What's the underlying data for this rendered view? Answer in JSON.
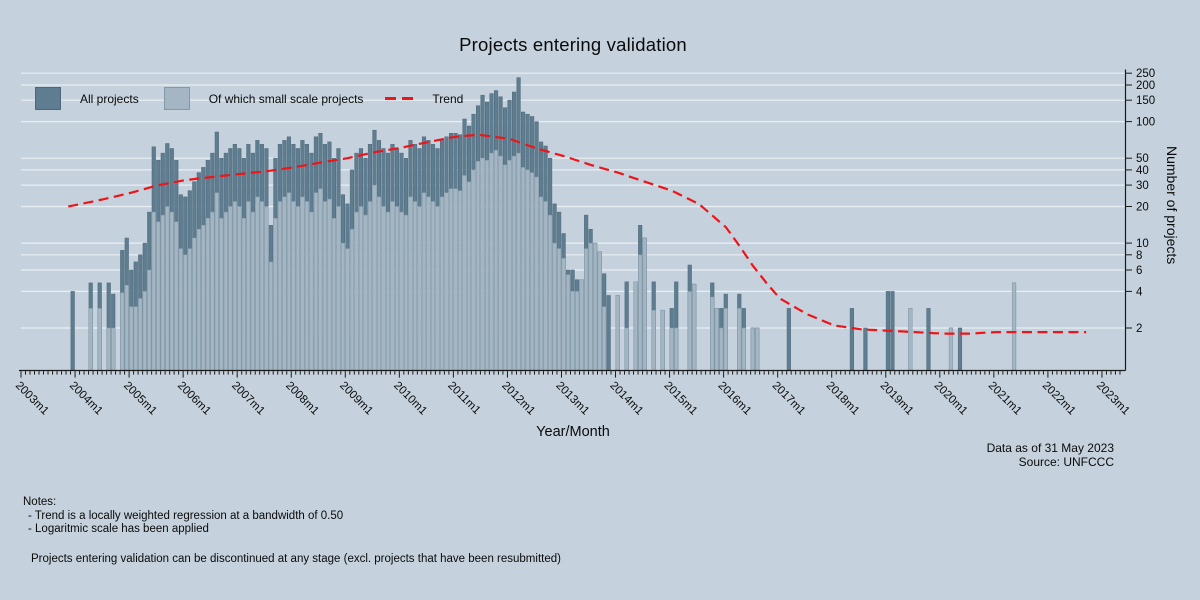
{
  "title": "Projects entering validation",
  "legend": {
    "all_label": "All projects",
    "small_label": "Of which small scale projects",
    "trend_label": "Trend"
  },
  "x_axis": {
    "label": "Year/Month",
    "tick_labels": [
      "2003m1",
      "2004m1",
      "2005m1",
      "2006m1",
      "2007m1",
      "2008m1",
      "2009m1",
      "2010m1",
      "2011m1",
      "2012m1",
      "2013m1",
      "2014m1",
      "2015m1",
      "2016m1",
      "2017m1",
      "2018m1",
      "2019m1",
      "2020m1",
      "2021m1",
      "2022m1",
      "2023m1"
    ]
  },
  "y_axis": {
    "label": "Number of projects",
    "ticks": [
      2,
      4,
      6,
      8,
      10,
      20,
      30,
      40,
      50,
      100,
      150,
      200,
      250
    ],
    "scale": "log"
  },
  "annotations": {
    "data_as_of": "Data as of 31 May 2023",
    "source": "Source: UNFCCC"
  },
  "notes": {
    "heading": "Notes:",
    "lines": [
      "- Trend is a locally weighted regression at a bandwidth of 0.50",
      "- Logaritmic scale has been applied"
    ],
    "footer": "Projects entering validation can be discontinued at any stage (excl. projects that have been resubmitted)"
  },
  "colors": {
    "background": "#c5d2dd",
    "bar_all": "#5f7d90",
    "bar_all_edge": "#4d6878",
    "bar_small": "#a4b6c4",
    "bar_small_edge": "#8499a8",
    "trend": "#ee1417",
    "gridline": "#e9eff4",
    "axis": "#1a1a1a",
    "text": "#0a0a0a"
  },
  "chart_data": {
    "type": "bar",
    "subtype": "overlaid-monthly-bars-with-trend",
    "x_start": "2003m1",
    "x_end": "2023m5",
    "ylim": [
      1,
      260
    ],
    "series_names": [
      "All projects",
      "Of which small scale projects",
      "Trend"
    ],
    "bars": [
      [
        "2003m12",
        4,
        0
      ],
      [
        "2004m4",
        4.7,
        2.9
      ],
      [
        "2004m6",
        4.7,
        2.9
      ],
      [
        "2004m8",
        4.7,
        2
      ],
      [
        "2004m9",
        3.8,
        2
      ],
      [
        "2004m11",
        8.7,
        3.9
      ],
      [
        "2004m12",
        11,
        4.5
      ],
      [
        "2005m1",
        6,
        3
      ],
      [
        "2005m2",
        7,
        3
      ],
      [
        "2005m3",
        8,
        3.5
      ],
      [
        "2005m4",
        10,
        4
      ],
      [
        "2005m5",
        18,
        6
      ],
      [
        "2005m6",
        62,
        18
      ],
      [
        "2005m7",
        48,
        15
      ],
      [
        "2005m8",
        55,
        17
      ],
      [
        "2005m9",
        66,
        20
      ],
      [
        "2005m10",
        60,
        18
      ],
      [
        "2005m11",
        48,
        15
      ],
      [
        "2005m12",
        25,
        9
      ],
      [
        "2006m1",
        24,
        8
      ],
      [
        "2006m2",
        27,
        9
      ],
      [
        "2006m3",
        32,
        11
      ],
      [
        "2006m4",
        38,
        13
      ],
      [
        "2006m5",
        42,
        14
      ],
      [
        "2006m6",
        48,
        16
      ],
      [
        "2006m7",
        55,
        18
      ],
      [
        "2006m8",
        82,
        26
      ],
      [
        "2006m9",
        50,
        16
      ],
      [
        "2006m10",
        55,
        18
      ],
      [
        "2006m11",
        60,
        20
      ],
      [
        "2006m12",
        65,
        22
      ],
      [
        "2007m1",
        60,
        20
      ],
      [
        "2007m2",
        50,
        16
      ],
      [
        "2007m3",
        65,
        22
      ],
      [
        "2007m4",
        55,
        18
      ],
      [
        "2007m5",
        70,
        24
      ],
      [
        "2007m6",
        65,
        22
      ],
      [
        "2007m7",
        60,
        20
      ],
      [
        "2007m8",
        14,
        7
      ],
      [
        "2007m9",
        50,
        16
      ],
      [
        "2007m10",
        65,
        22
      ],
      [
        "2007m11",
        70,
        24
      ],
      [
        "2007m12",
        75,
        26
      ],
      [
        "2008m1",
        65,
        22
      ],
      [
        "2008m2",
        60,
        20
      ],
      [
        "2008m3",
        70,
        24
      ],
      [
        "2008m4",
        65,
        22
      ],
      [
        "2008m5",
        55,
        18
      ],
      [
        "2008m6",
        75,
        26
      ],
      [
        "2008m7",
        80,
        28
      ],
      [
        "2008m8",
        65,
        22
      ],
      [
        "2008m9",
        68,
        23
      ],
      [
        "2008m10",
        50,
        16
      ],
      [
        "2008m11",
        60,
        20
      ],
      [
        "2008m12",
        25,
        10
      ],
      [
        "2009m1",
        21,
        9
      ],
      [
        "2009m2",
        40,
        13
      ],
      [
        "2009m3",
        55,
        18
      ],
      [
        "2009m4",
        60,
        20
      ],
      [
        "2009m5",
        50,
        17
      ],
      [
        "2009m6",
        65,
        22
      ],
      [
        "2009m7",
        85,
        30
      ],
      [
        "2009m8",
        70,
        24
      ],
      [
        "2009m9",
        60,
        20
      ],
      [
        "2009m10",
        55,
        18
      ],
      [
        "2009m11",
        65,
        22
      ],
      [
        "2009m12",
        60,
        20
      ],
      [
        "2010m1",
        55,
        18
      ],
      [
        "2010m2",
        50,
        17
      ],
      [
        "2010m3",
        70,
        24
      ],
      [
        "2010m4",
        65,
        22
      ],
      [
        "2010m5",
        60,
        20
      ],
      [
        "2010m6",
        75,
        26
      ],
      [
        "2010m7",
        70,
        24
      ],
      [
        "2010m8",
        65,
        22
      ],
      [
        "2010m9",
        60,
        20
      ],
      [
        "2010m10",
        70,
        24
      ],
      [
        "2010m11",
        75,
        26
      ],
      [
        "2010m12",
        80,
        28
      ],
      [
        "2011m1",
        80,
        28
      ],
      [
        "2011m2",
        78,
        27
      ],
      [
        "2011m3",
        105,
        36
      ],
      [
        "2011m4",
        92,
        32
      ],
      [
        "2011m5",
        115,
        40
      ],
      [
        "2011m6",
        135,
        47
      ],
      [
        "2011m7",
        165,
        50
      ],
      [
        "2011m8",
        145,
        48
      ],
      [
        "2011m9",
        170,
        55
      ],
      [
        "2011m10",
        180,
        58
      ],
      [
        "2011m11",
        160,
        52
      ],
      [
        "2011m12",
        130,
        44
      ],
      [
        "2012m1",
        150,
        48
      ],
      [
        "2012m2",
        175,
        52
      ],
      [
        "2012m3",
        230,
        55
      ],
      [
        "2012m4",
        120,
        42
      ],
      [
        "2012m5",
        115,
        40
      ],
      [
        "2012m6",
        110,
        38
      ],
      [
        "2012m7",
        100,
        35
      ],
      [
        "2012m8",
        68,
        24
      ],
      [
        "2012m9",
        63,
        22
      ],
      [
        "2012m10",
        50,
        17
      ],
      [
        "2012m11",
        21,
        10
      ],
      [
        "2012m12",
        18,
        9
      ],
      [
        "2013m1",
        12,
        7.5
      ],
      [
        "2013m2",
        6,
        5.5
      ],
      [
        "2013m3",
        6,
        4
      ],
      [
        "2013m4",
        5,
        4
      ],
      [
        "2013m5",
        5,
        5
      ],
      [
        "2013m6",
        17,
        9
      ],
      [
        "2013m7",
        13,
        10
      ],
      [
        "2013m8",
        10,
        10
      ],
      [
        "2013m9",
        8.5,
        8.5
      ],
      [
        "2013m10",
        5.6,
        3
      ],
      [
        "2013m11",
        3.7,
        0
      ],
      [
        "2014m1",
        3.7,
        3.7
      ],
      [
        "2014m3",
        4.8,
        2
      ],
      [
        "2014m5",
        4.8,
        4.8
      ],
      [
        "2014m6",
        14,
        8
      ],
      [
        "2014m7",
        11,
        11
      ],
      [
        "2014m9",
        4.8,
        2.8
      ],
      [
        "2014m11",
        2.8,
        2.8
      ],
      [
        "2015m1",
        2.9,
        2
      ],
      [
        "2015m2",
        4.8,
        2
      ],
      [
        "2015m5",
        6.6,
        4
      ],
      [
        "2015m6",
        4.6,
        4.6
      ],
      [
        "2015m10",
        4.7,
        3.6
      ],
      [
        "2015m11",
        2.9,
        2.9
      ],
      [
        "2015m12",
        2.9,
        2
      ],
      [
        "2016m1",
        3.8,
        2.9
      ],
      [
        "2016m4",
        3.8,
        2.9
      ],
      [
        "2016m5",
        2.9,
        2
      ],
      [
        "2016m7",
        2,
        2
      ],
      [
        "2016m8",
        2,
        2
      ],
      [
        "2017m3",
        2.9,
        0
      ],
      [
        "2018m5",
        2.9,
        0
      ],
      [
        "2018m8",
        2,
        0
      ],
      [
        "2019m1",
        4,
        0
      ],
      [
        "2019m2",
        4,
        0
      ],
      [
        "2019m6",
        2.9,
        2.9
      ],
      [
        "2019m10",
        2.9,
        0
      ],
      [
        "2020m3",
        2,
        2
      ],
      [
        "2020m5",
        2,
        0
      ],
      [
        "2021m5",
        4.7,
        4.7
      ]
    ],
    "trend": [
      [
        "2003m11",
        20
      ],
      [
        "2004m7",
        23
      ],
      [
        "2005m1",
        26
      ],
      [
        "2005m7",
        30
      ],
      [
        "2006m1",
        33
      ],
      [
        "2006m7",
        35
      ],
      [
        "2007m1",
        37
      ],
      [
        "2007m7",
        39
      ],
      [
        "2008m1",
        42
      ],
      [
        "2008m7",
        46
      ],
      [
        "2009m1",
        50
      ],
      [
        "2009m7",
        56
      ],
      [
        "2010m1",
        61
      ],
      [
        "2010m7",
        68
      ],
      [
        "2011m1",
        75
      ],
      [
        "2011m6",
        78
      ],
      [
        "2012m1",
        72
      ],
      [
        "2012m7",
        60
      ],
      [
        "2013m1",
        52
      ],
      [
        "2013m7",
        44
      ],
      [
        "2014m1",
        38
      ],
      [
        "2014m7",
        32
      ],
      [
        "2015m1",
        27
      ],
      [
        "2015m7",
        21
      ],
      [
        "2016m1",
        13.5
      ],
      [
        "2016m4",
        9.5
      ],
      [
        "2016m7",
        6.5
      ],
      [
        "2016m10",
        4.7
      ],
      [
        "2017m1",
        3.5
      ],
      [
        "2017m7",
        2.6
      ],
      [
        "2018m1",
        2.1
      ],
      [
        "2018m7",
        1.95
      ],
      [
        "2019m1",
        1.9
      ],
      [
        "2019m7",
        1.85
      ],
      [
        "2020m1",
        1.8
      ],
      [
        "2020m7",
        1.8
      ],
      [
        "2021m1",
        1.85
      ],
      [
        "2021m7",
        1.85
      ],
      [
        "2022m1",
        1.85
      ],
      [
        "2022m9",
        1.85
      ]
    ]
  }
}
